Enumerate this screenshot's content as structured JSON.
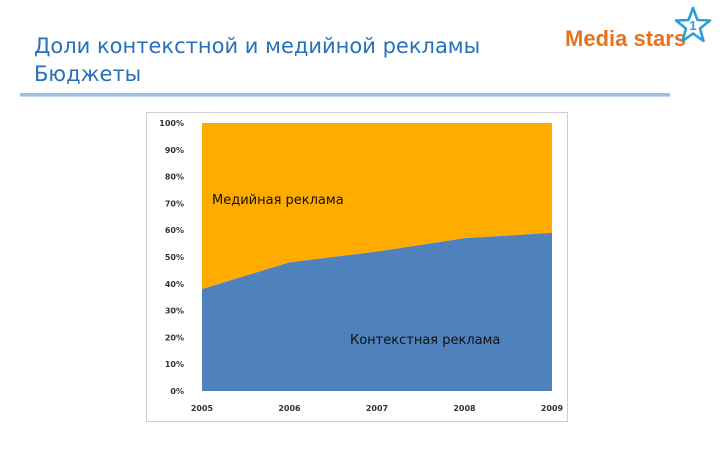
{
  "header": {
    "title_line1": "Доли контекстной и медийной рекламы",
    "title_line2": "Бюджеты",
    "logo_text": "Media stars",
    "logo_icon": "star-icon"
  },
  "colors": {
    "title": "#2a6fba",
    "logo": "#e8731e",
    "logo_star": "#2b9fd8",
    "rule": "#9fbfe6",
    "series_context": "#4f81bd",
    "series_media": "#ffab00"
  },
  "chart_data": {
    "type": "area",
    "stacked": true,
    "percent": true,
    "x": [
      2005,
      2006,
      2007,
      2008,
      2009
    ],
    "xticks": [
      "2005",
      "2006",
      "2007",
      "2008",
      "2009"
    ],
    "yticks": [
      "0%",
      "10%",
      "20%",
      "30%",
      "40%",
      "50%",
      "60%",
      "70%",
      "80%",
      "90%",
      "100%"
    ],
    "ylim": [
      0,
      100
    ],
    "series": [
      {
        "name": "Контекстная реклама",
        "values": [
          38,
          48,
          52,
          57,
          59
        ],
        "color": "#4f81bd"
      },
      {
        "name": "Медийная реклама",
        "values": [
          62,
          52,
          48,
          43,
          41
        ],
        "color": "#ffab00"
      }
    ],
    "labels": {
      "context": "Контекстная реклама",
      "media": "Медийная реклама"
    },
    "grid": false,
    "legend": "none"
  }
}
